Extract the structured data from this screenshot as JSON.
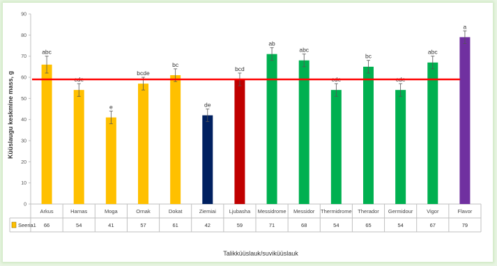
{
  "chart_data": {
    "type": "bar",
    "title": "",
    "xlabel": "Talikküüslauk/suviküüslauk",
    "ylabel": "Küüslaugu keskmine mass, g",
    "ylim": [
      0,
      90
    ],
    "yticks": [
      0,
      10,
      20,
      30,
      40,
      50,
      60,
      70,
      80,
      90
    ],
    "categories": [
      "Arkus",
      "Harnas",
      "Moga",
      "Ornak",
      "Dokat",
      "Ziemiai",
      "Ljubasha",
      "Messidrome",
      "Messidor",
      "Thermidrome",
      "Therador",
      "Germidour",
      "Vigor",
      "Flavor"
    ],
    "series": [
      {
        "name": "Seeria1",
        "values": [
          66,
          54,
          41,
          57,
          61,
          42,
          59,
          71,
          68,
          54,
          65,
          54,
          67,
          79
        ],
        "colors": [
          "#ffc000",
          "#ffc000",
          "#ffc000",
          "#ffc000",
          "#ffc000",
          "#002060",
          "#c00000",
          "#00b050",
          "#00b050",
          "#00b050",
          "#00b050",
          "#00b050",
          "#00b050",
          "#7030a0"
        ],
        "errors": [
          4,
          3,
          3,
          3,
          3,
          3,
          3,
          3,
          3,
          3,
          3,
          3,
          3,
          3
        ],
        "significance_letters": [
          "abc",
          "cde",
          "e",
          "bcde",
          "bc",
          "de",
          "bcd",
          "ab",
          "abc",
          "cde",
          "bc",
          "cde",
          "abc",
          "a"
        ]
      }
    ],
    "reference_line": {
      "value": 59,
      "color": "#ff0000"
    },
    "data_table": true,
    "grid": false,
    "legend": "data-table-left"
  }
}
